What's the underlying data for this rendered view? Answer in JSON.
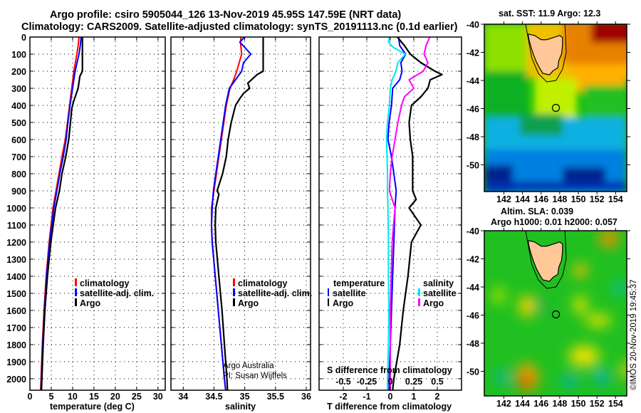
{
  "title_line1": "Argo profile: csiro 5905044_126 13-Nov-2019 45.95S 147.59E (NRT data)",
  "title_line2": "Climatology: CARS2009. Satellite-adjusted climatology: synTS_20191113.nc (0.1d earlier)",
  "credit_line1": "Argo Australia",
  "credit_line2": "PI: Susan Wijffels",
  "timestamp": "©IMOS 20-Nov-2019 19:45:37",
  "colors": {
    "climatology": "#ff0000",
    "satellite": "#0000ff",
    "argo": "#000000",
    "sal_satellite": "#00e5ee",
    "sal_argo": "#ff00ff"
  },
  "chart_data": [
    {
      "type": "line",
      "xlabel": "temperature (deg C)",
      "ylabel": "",
      "xlim": [
        0,
        31.7
      ],
      "ylim": [
        2067,
        0
      ],
      "xticks": [
        "0",
        "5",
        "10",
        "15",
        "20",
        "25",
        "30"
      ],
      "xtick_values": [
        0,
        5,
        10,
        15,
        20,
        25,
        30
      ],
      "yticks": [
        "0",
        "100",
        "200",
        "300",
        "400",
        "500",
        "600",
        "700",
        "800",
        "900",
        "1000",
        "1100",
        "1200",
        "1300",
        "1400",
        "1500",
        "1600",
        "1700",
        "1800",
        "1900",
        "2000"
      ],
      "grid": true,
      "legend_position": "lower-right",
      "series": [
        {
          "name": "climatology",
          "color": "#ff0000",
          "depth": [
            0,
            50,
            100,
            200,
            300,
            400,
            500,
            600,
            700,
            800,
            900,
            1000,
            1200,
            1400,
            1600,
            1800,
            2000,
            2067
          ],
          "values": [
            11.5,
            11.3,
            11.0,
            10.3,
            9.8,
            9.3,
            8.8,
            8.3,
            7.5,
            6.8,
            6.1,
            5.4,
            4.5,
            3.8,
            3.3,
            2.9,
            2.6,
            2.5
          ]
        },
        {
          "name": "satellite-adj. clim.",
          "color": "#0000ff",
          "depth": [
            0,
            50,
            100,
            200,
            300,
            400,
            500,
            600,
            700,
            800,
            900,
            1000,
            1200,
            1400,
            1600,
            1800,
            2000,
            2067
          ],
          "values": [
            12.0,
            11.8,
            11.5,
            10.6,
            10.0,
            9.4,
            8.9,
            8.5,
            7.8,
            7.0,
            6.3,
            5.6,
            4.6,
            3.9,
            3.4,
            3.0,
            2.7,
            2.6
          ]
        },
        {
          "name": "Argo",
          "color": "#000000",
          "depth": [
            0,
            100,
            200,
            230,
            300,
            380,
            420,
            500,
            600,
            700,
            800,
            900,
            1000,
            1200,
            1400,
            1600,
            1800,
            2000,
            2067
          ],
          "values": [
            12.3,
            12.3,
            12.3,
            11.7,
            11.3,
            10.2,
            9.8,
            9.5,
            9.1,
            8.4,
            7.5,
            6.9,
            6.0,
            4.9,
            4.1,
            3.5,
            3.1,
            2.8,
            2.7
          ]
        }
      ]
    },
    {
      "type": "line",
      "xlabel": "salinity",
      "xlim": [
        33.8,
        36.07
      ],
      "ylim": [
        2067,
        0
      ],
      "xticks": [
        "34",
        "34.5",
        "35",
        "35.5",
        "36"
      ],
      "xtick_values": [
        34,
        34.5,
        35,
        35.5,
        36
      ],
      "grid": true,
      "legend_position": "lower-right",
      "series": [
        {
          "name": "climatology",
          "color": "#ff0000",
          "depth": [
            0,
            30,
            100,
            200,
            250,
            300,
            400,
            500,
            600,
            700,
            800,
            900,
            1000,
            1100,
            1200,
            1400,
            1600,
            1800,
            2000,
            2067
          ],
          "values": [
            34.94,
            34.93,
            34.95,
            34.87,
            34.82,
            34.76,
            34.7,
            34.66,
            34.62,
            34.58,
            34.54,
            34.5,
            34.46,
            34.46,
            34.47,
            34.52,
            34.57,
            34.62,
            34.67,
            34.69
          ]
        },
        {
          "name": "satellite-adj. clim.",
          "color": "#0000ff",
          "depth": [
            0,
            30,
            60,
            100,
            150,
            200,
            250,
            300,
            400,
            500,
            600,
            700,
            800,
            900,
            1000,
            1100,
            1200,
            1400,
            1600,
            1800,
            2000,
            2067
          ],
          "values": [
            35.0,
            34.92,
            35.0,
            35.1,
            34.98,
            34.95,
            34.85,
            34.75,
            34.69,
            34.65,
            34.61,
            34.57,
            34.53,
            34.49,
            34.47,
            34.46,
            34.47,
            34.52,
            34.57,
            34.62,
            34.67,
            34.69
          ]
        },
        {
          "name": "Argo",
          "color": "#000000",
          "depth": [
            0,
            200,
            220,
            270,
            300,
            330,
            360,
            400,
            500,
            600,
            700,
            800,
            900,
            920,
            1000,
            1100,
            1200,
            1400,
            1600,
            1800,
            2000,
            2067
          ],
          "values": [
            35.3,
            35.3,
            35.2,
            35.05,
            35.08,
            34.98,
            34.92,
            34.85,
            34.78,
            34.73,
            34.7,
            34.64,
            34.55,
            34.58,
            34.53,
            34.52,
            34.53,
            34.58,
            34.63,
            34.67,
            34.71,
            34.72
          ]
        }
      ]
    },
    {
      "type": "line",
      "xlabel": "T difference from climatology",
      "xlabel2": "S difference from climatology",
      "xlim": [
        -3.03,
        3.03
      ],
      "xlim_S": [
        -0.7575,
        0.7575
      ],
      "ylim": [
        2067,
        0
      ],
      "xticks": [
        "-2",
        "-1",
        "0",
        "1",
        "2"
      ],
      "xtick_values": [
        -2,
        -1,
        0,
        1,
        2
      ],
      "xticks_S": [
        "-0.5",
        "-0.25",
        "0",
        "0.25",
        "0.5"
      ],
      "xtick_values_S": [
        -0.5,
        -0.25,
        0,
        0.25,
        0.5
      ],
      "grid": true,
      "legend_titles": {
        "left": "temperature",
        "right": "salinity"
      },
      "series": [
        {
          "name": "satellite",
          "group": "temperature",
          "color": "#0000ff",
          "depth": [
            0,
            50,
            100,
            150,
            200,
            250,
            300,
            400,
            500,
            600,
            700,
            800,
            900,
            1000,
            1200,
            1400,
            1600,
            1800,
            2000,
            2067
          ],
          "values": [
            0.35,
            0.4,
            0.65,
            0.45,
            0.5,
            0.4,
            0.1,
            0.05,
            -0.05,
            -0.1,
            0.05,
            0.15,
            0.25,
            0.2,
            0.15,
            0.1,
            0.05,
            0.0,
            -0.05,
            -0.05
          ]
        },
        {
          "name": "Argo",
          "group": "temperature",
          "color": "#000000",
          "depth": [
            0,
            50,
            100,
            150,
            200,
            220,
            250,
            300,
            350,
            400,
            500,
            600,
            700,
            800,
            900,
            950,
            1000,
            1100,
            1200,
            1400,
            1600,
            1800,
            2000,
            2067
          ],
          "values": [
            0.3,
            0.6,
            0.85,
            1.3,
            1.9,
            2.2,
            1.7,
            1.6,
            1.3,
            0.9,
            0.8,
            0.85,
            0.95,
            0.95,
            0.95,
            1.1,
            0.8,
            1.3,
            0.9,
            0.75,
            0.55,
            0.4,
            0.15,
            0.1
          ]
        },
        {
          "name": "satellite",
          "group": "salinity",
          "color": "#00e5ee",
          "depth": [
            0,
            30,
            60,
            100,
            150,
            200,
            250,
            300,
            400,
            500,
            600,
            700,
            800,
            900,
            1000,
            1200,
            1400,
            1600,
            1800,
            2000,
            2067
          ],
          "values": [
            -0.01,
            -0.02,
            0.03,
            0.16,
            0.08,
            0.06,
            0.02,
            0.0,
            -0.01,
            -0.03,
            -0.04,
            -0.035,
            -0.03,
            -0.03,
            -0.025,
            -0.02,
            -0.02,
            -0.015,
            -0.02,
            -0.03,
            -0.03
          ]
        },
        {
          "name": "Argo",
          "group": "salinity",
          "color": "#ff00ff",
          "depth": [
            0,
            50,
            100,
            150,
            200,
            250,
            300,
            350,
            400,
            500,
            600,
            700,
            800,
            900,
            1000,
            1200,
            1400,
            1600,
            1800,
            2000,
            2067
          ],
          "values": [
            0.42,
            0.38,
            0.36,
            0.4,
            0.35,
            0.2,
            0.25,
            0.15,
            0.12,
            0.08,
            0.05,
            0.02,
            0.0,
            -0.01,
            0.05,
            0.02,
            0.01,
            0.0,
            0.0,
            0.0,
            0.0
          ]
        }
      ]
    },
    {
      "type": "heatmap",
      "title": "sat. SST: 11.9 Argo: 12.3",
      "xlim": [
        139.9,
        155.2
      ],
      "ylim": [
        -51.9,
        -40
      ],
      "xticks": [
        "142",
        "144",
        "146",
        "148",
        "150",
        "152",
        "154"
      ],
      "xtick_values": [
        142,
        144,
        146,
        148,
        150,
        152,
        154
      ],
      "yticks": [
        "-40",
        "-42",
        "-44",
        "-46",
        "-48",
        "-50"
      ],
      "ytick_values": [
        -40,
        -42,
        -44,
        -46,
        -48,
        -50
      ],
      "marker": {
        "lon": 147.59,
        "lat": -45.95
      }
    },
    {
      "type": "heatmap",
      "title": "Altim. SLA: 0.039",
      "subtitle": "Argo h1000: 0.01 h2000: 0.057",
      "xlim": [
        139.9,
        155.2
      ],
      "ylim": [
        -51.9,
        -40
      ],
      "xticks": [
        "142",
        "144",
        "146",
        "148",
        "150",
        "152",
        "154"
      ],
      "xtick_values": [
        142,
        144,
        146,
        148,
        150,
        152,
        154
      ],
      "yticks": [
        "-40",
        "-42",
        "-44",
        "-46",
        "-48",
        "-50"
      ],
      "ytick_values": [
        -40,
        -42,
        -44,
        -46,
        -48,
        -50
      ],
      "marker": {
        "lon": 147.59,
        "lat": -45.95
      }
    }
  ]
}
